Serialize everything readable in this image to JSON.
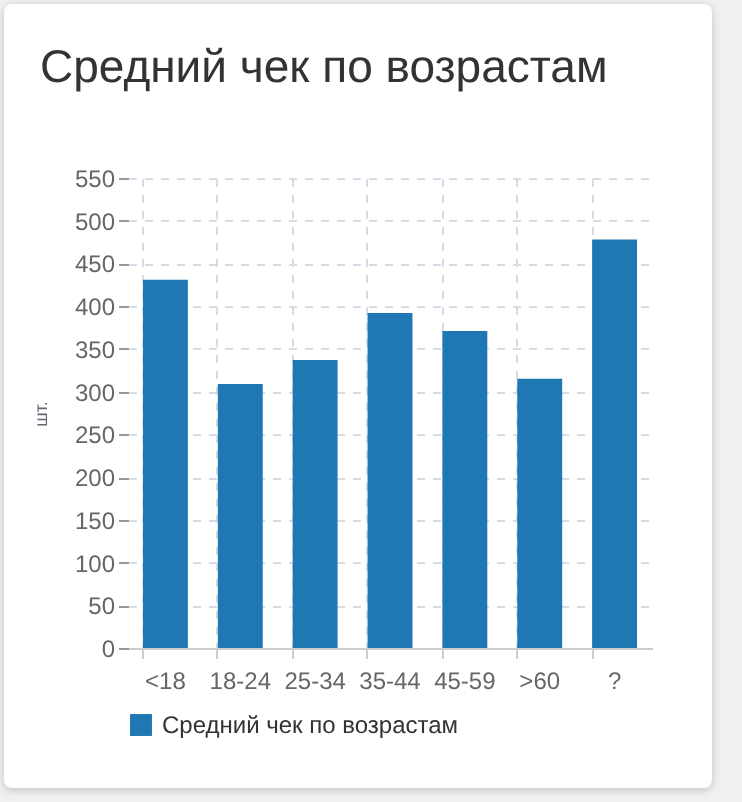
{
  "chart_data": {
    "type": "bar",
    "title": "Средний чек по возрастам",
    "ylabel": "шт.",
    "categories": [
      "<18",
      "18-24",
      "25-34",
      "35-44",
      "45-59",
      ">60",
      "?"
    ],
    "series": [
      {
        "name": "Средний чек по возрастам",
        "color": "#1f77b4",
        "values": [
          431,
          309,
          337,
          392,
          371,
          315,
          478
        ]
      }
    ],
    "ylim": [
      0,
      550
    ],
    "yticks": [
      0,
      50,
      100,
      150,
      200,
      250,
      300,
      350,
      400,
      450,
      500,
      550
    ],
    "grid": true,
    "legend": "bottom"
  }
}
